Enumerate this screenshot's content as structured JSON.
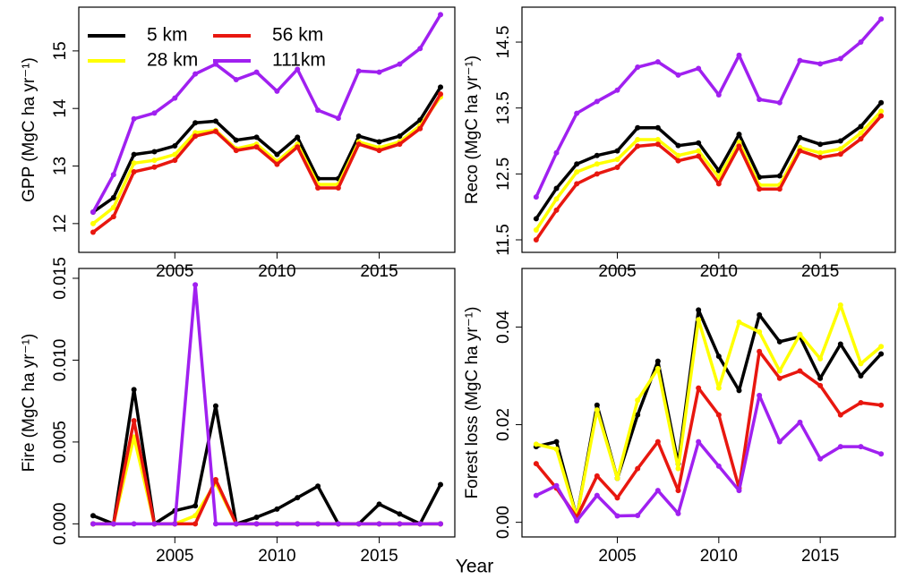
{
  "xlabel": "Year",
  "chart_data": [
    {
      "type": "line",
      "ylabel": "GPP (MgC ha yr⁻¹)",
      "legend": "top-left",
      "x": [
        2001,
        2002,
        2003,
        2004,
        2005,
        2006,
        2007,
        2008,
        2009,
        2010,
        2011,
        2012,
        2013,
        2014,
        2015,
        2016,
        2017,
        2018
      ],
      "xlim": [
        2000.3,
        2018.7
      ],
      "xticks": [
        2005,
        2010,
        2015
      ],
      "ylim": [
        11.5,
        15.76
      ],
      "yticks": [
        12,
        13,
        14,
        15
      ],
      "series": [
        {
          "name": "5 km",
          "color": "#000000",
          "values": [
            12.2,
            12.45,
            13.2,
            13.25,
            13.35,
            13.75,
            13.78,
            13.45,
            13.5,
            13.2,
            13.5,
            12.78,
            12.78,
            13.52,
            13.42,
            13.52,
            13.8,
            14.37
          ]
        },
        {
          "name": "28 km",
          "color": "#ffff00",
          "values": [
            12.0,
            12.28,
            13.05,
            13.1,
            13.2,
            13.58,
            13.62,
            13.3,
            13.38,
            13.08,
            13.38,
            12.68,
            12.68,
            13.42,
            13.32,
            13.42,
            13.7,
            14.2
          ]
        },
        {
          "name": "56 km",
          "color": "#e8170f",
          "values": [
            11.85,
            12.12,
            12.9,
            12.98,
            13.1,
            13.52,
            13.6,
            13.27,
            13.33,
            13.03,
            13.33,
            12.62,
            12.62,
            13.38,
            13.27,
            13.38,
            13.65,
            14.25
          ]
        },
        {
          "name": "111km",
          "color": "#a020f0",
          "values": [
            12.2,
            12.85,
            13.82,
            13.92,
            14.18,
            14.6,
            14.77,
            14.5,
            14.63,
            14.3,
            14.68,
            13.97,
            13.83,
            14.65,
            14.63,
            14.77,
            15.04,
            15.63
          ]
        }
      ]
    },
    {
      "type": "line",
      "ylabel": "Reco (MgC ha yr⁻¹)",
      "x": [
        2001,
        2002,
        2003,
        2004,
        2005,
        2006,
        2007,
        2008,
        2009,
        2010,
        2011,
        2012,
        2013,
        2014,
        2015,
        2016,
        2017,
        2018
      ],
      "xlim": [
        2000.3,
        2018.7
      ],
      "xticks": [
        2005,
        2010,
        2015
      ],
      "ylim": [
        11.31,
        15.03
      ],
      "yticks": [
        11.5,
        12.5,
        13.5,
        14.5
      ],
      "series": [
        {
          "color": "#000000",
          "values": [
            11.82,
            12.28,
            12.65,
            12.78,
            12.85,
            13.2,
            13.2,
            12.93,
            12.97,
            12.55,
            13.1,
            12.45,
            12.47,
            13.05,
            12.95,
            13.0,
            13.22,
            13.58
          ]
        },
        {
          "color": "#ffff00",
          "values": [
            11.65,
            12.12,
            12.53,
            12.65,
            12.72,
            13.02,
            13.02,
            12.78,
            12.85,
            12.45,
            12.98,
            12.33,
            12.33,
            12.9,
            12.82,
            12.88,
            13.12,
            13.45
          ]
        },
        {
          "color": "#e8170f",
          "values": [
            11.5,
            11.95,
            12.35,
            12.5,
            12.6,
            12.92,
            12.95,
            12.7,
            12.77,
            12.35,
            12.92,
            12.27,
            12.27,
            12.85,
            12.75,
            12.8,
            13.03,
            13.38
          ]
        },
        {
          "color": "#a020f0",
          "values": [
            12.15,
            12.82,
            13.42,
            13.6,
            13.77,
            14.12,
            14.2,
            14.0,
            14.1,
            13.7,
            14.3,
            13.63,
            13.58,
            14.22,
            14.17,
            14.25,
            14.5,
            14.85
          ]
        }
      ]
    },
    {
      "type": "line",
      "ylabel": "Fire (MgC ha yr⁻¹)",
      "x": [
        2001,
        2002,
        2003,
        2004,
        2005,
        2006,
        2007,
        2008,
        2009,
        2010,
        2011,
        2012,
        2013,
        2014,
        2015,
        2016,
        2017,
        2018
      ],
      "xlim": [
        2000.3,
        2018.7
      ],
      "xticks": [
        2005,
        2010,
        2015
      ],
      "ylim": [
        -0.0008,
        0.0156
      ],
      "yticks": [
        {
          "value": 0,
          "label": "0.000"
        },
        0.005,
        {
          "value": 0.01,
          "label": "0.010"
        },
        {
          "value": 0.015,
          "label": "0.015"
        }
      ],
      "series": [
        {
          "color": "#000000",
          "values": [
            0.0005,
            0,
            0.0082,
            0,
            0.0008,
            0.0011,
            0.0072,
            0,
            0.0004,
            0.0009,
            0.0016,
            0.0023,
            0,
            0,
            0.0012,
            0.0006,
            0,
            0.0024
          ]
        },
        {
          "color": "#ffff00",
          "values": [
            0,
            0,
            0.0053,
            0,
            0,
            0.0005,
            0.0025,
            0,
            0,
            0,
            0,
            0,
            0,
            0,
            0,
            0,
            0,
            0
          ]
        },
        {
          "color": "#e8170f",
          "values": [
            0,
            0,
            0.0063,
            0,
            0,
            0,
            0.0027,
            0,
            0,
            0,
            0,
            0,
            0,
            0,
            0,
            0,
            0,
            0
          ]
        },
        {
          "color": "#a020f0",
          "values": [
            0,
            0,
            0,
            0,
            0,
            0.0146,
            0,
            0,
            0,
            0,
            0,
            0,
            0,
            0,
            0,
            0,
            0,
            0
          ]
        }
      ]
    },
    {
      "type": "line",
      "ylabel": "Forest loss (MgC ha yr⁻¹)",
      "x": [
        2001,
        2002,
        2003,
        2004,
        2005,
        2006,
        2007,
        2008,
        2009,
        2010,
        2011,
        2012,
        2013,
        2014,
        2015,
        2016,
        2017,
        2018
      ],
      "xlim": [
        2000.3,
        2018.7
      ],
      "xticks": [
        2005,
        2010,
        2015
      ],
      "ylim": [
        -0.003,
        0.052
      ],
      "yticks": [
        {
          "value": 0,
          "label": "0.00"
        },
        0.02,
        0.04
      ],
      "series": [
        {
          "color": "#000000",
          "values": [
            0.0155,
            0.0165,
            0.001,
            0.024,
            0.009,
            0.022,
            0.033,
            0.012,
            0.0435,
            0.034,
            0.027,
            0.0425,
            0.037,
            0.038,
            0.0295,
            0.0365,
            0.03,
            0.0345
          ]
        },
        {
          "color": "#ffff00",
          "values": [
            0.016,
            0.015,
            0.001,
            0.023,
            0.009,
            0.025,
            0.0315,
            0.011,
            0.0415,
            0.0275,
            0.041,
            0.039,
            0.031,
            0.0385,
            0.0335,
            0.0445,
            0.0325,
            0.036
          ]
        },
        {
          "color": "#e8170f",
          "values": [
            0.012,
            0.007,
            0.001,
            0.0095,
            0.005,
            0.011,
            0.0165,
            0.0065,
            0.0275,
            0.022,
            0.007,
            0.035,
            0.0295,
            0.031,
            0.028,
            0.022,
            0.0245,
            0.024
          ]
        },
        {
          "color": "#a020f0",
          "values": [
            0.0055,
            0.0075,
            0.0003,
            0.0055,
            0.0013,
            0.0014,
            0.0065,
            0.0018,
            0.0165,
            0.0115,
            0.0065,
            0.026,
            0.0165,
            0.0205,
            0.013,
            0.0155,
            0.0155,
            0.014
          ]
        }
      ]
    }
  ]
}
